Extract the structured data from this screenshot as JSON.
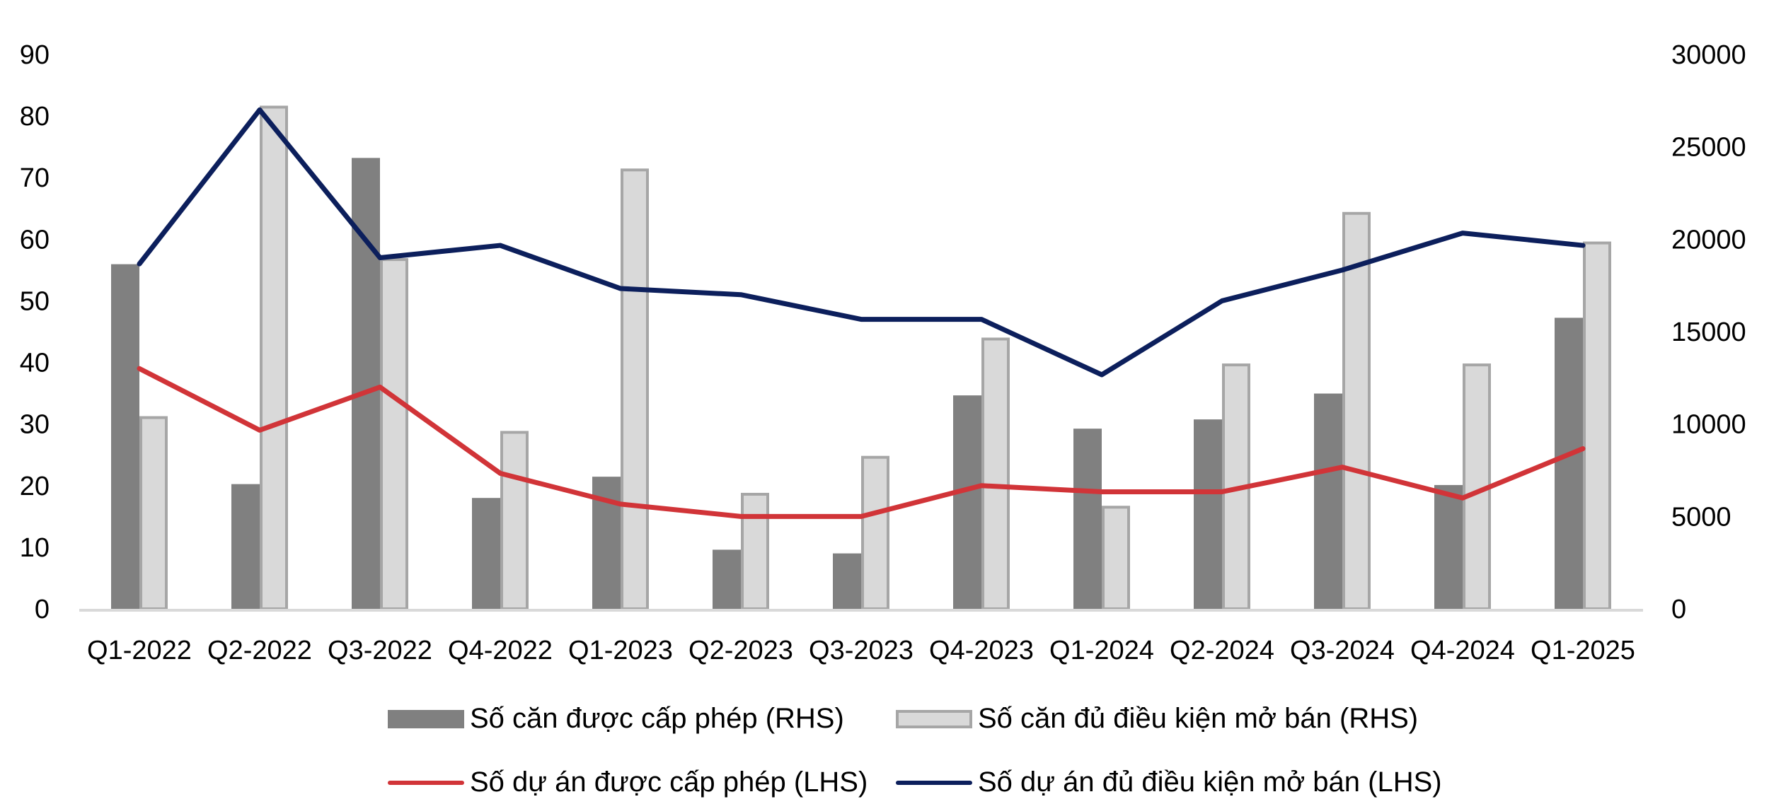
{
  "chart_data": {
    "type": "bar",
    "title": "",
    "xlabel": "",
    "ylabel_left": "",
    "ylabel_right": "",
    "categories": [
      "Q1-2022",
      "Q2-2022",
      "Q3-2022",
      "Q4-2022",
      "Q1-2023",
      "Q2-2023",
      "Q3-2023",
      "Q4-2023",
      "Q1-2024",
      "Q2-2024",
      "Q3-2024",
      "Q4-2024",
      "Q1-2025"
    ],
    "y_left": {
      "min": 0,
      "max": 90,
      "ticks": [
        "0",
        "10",
        "20",
        "30",
        "40",
        "50",
        "60",
        "70",
        "80",
        "90"
      ]
    },
    "y_right": {
      "min": 0,
      "max": 30000,
      "ticks": [
        "0",
        "5000",
        "10000",
        "15000",
        "20000",
        "25000",
        "30000"
      ]
    },
    "grid": false,
    "legend_position": "bottom",
    "series": [
      {
        "name": "Số căn được cấp phép (RHS)",
        "type": "bar",
        "axis": "right",
        "color": "#808080",
        "values": [
          18650,
          6750,
          24400,
          6000,
          7150,
          3200,
          3000,
          11550,
          9750,
          10250,
          11650,
          6700,
          15750
        ]
      },
      {
        "name": "Số căn đủ điều kiện mở bán (RHS)",
        "type": "bar",
        "axis": "right",
        "color": "#d9d9d9",
        "border": "#a6a6a6",
        "values": [
          10350,
          27150,
          18900,
          9550,
          23750,
          6200,
          8200,
          14600,
          5500,
          13200,
          21400,
          13200,
          19800
        ]
      },
      {
        "name": "Số dự án được cấp phép (LHS)",
        "type": "line",
        "axis": "left",
        "color": "#d13438",
        "values": [
          39,
          29,
          36,
          22,
          17,
          15,
          15,
          20,
          19,
          19,
          23,
          18,
          26
        ]
      },
      {
        "name": "Số dự án đủ điều kiện mở bán (LHS)",
        "type": "line",
        "axis": "left",
        "color": "#0c1f5c",
        "values": [
          56,
          81,
          57,
          59,
          52,
          51,
          47,
          47,
          38,
          50,
          55,
          61,
          59
        ]
      }
    ]
  },
  "legend": {
    "items": [
      {
        "label": "Số căn được cấp phép (RHS)"
      },
      {
        "label": "Số căn đủ điều kiện mở bán (RHS)"
      },
      {
        "label": "Số dự án được cấp phép (LHS)"
      },
      {
        "label": "Số dự án đủ điều kiện mở bán (LHS)"
      }
    ]
  }
}
